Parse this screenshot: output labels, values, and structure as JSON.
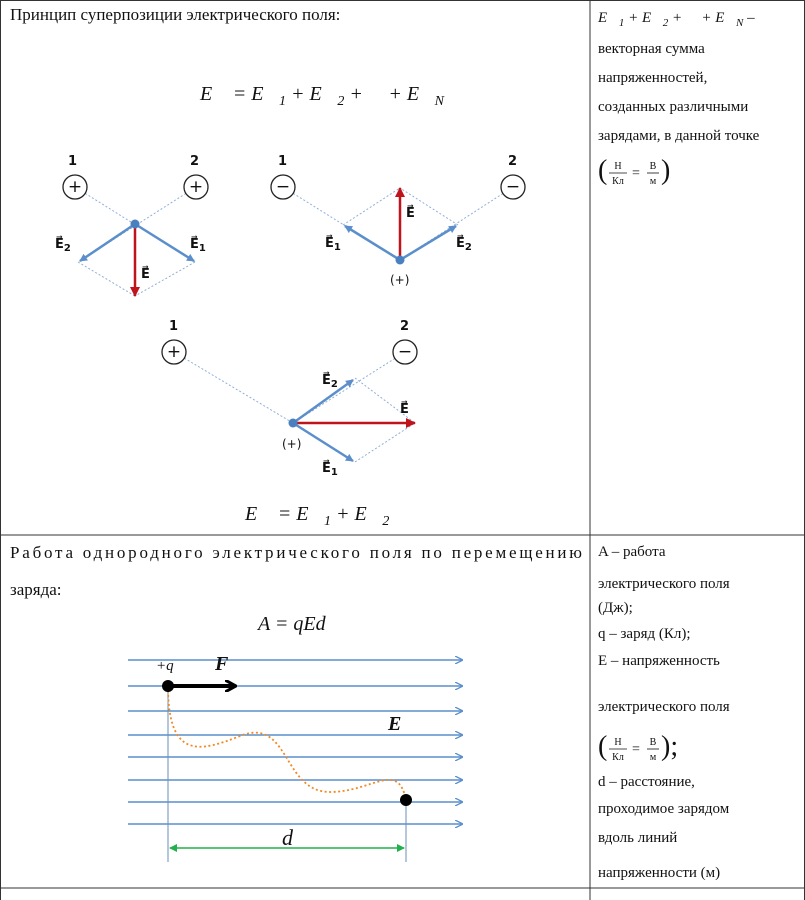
{
  "rows": [
    {
      "left": {
        "heading": "Принцип суперпозиции электрического поля:",
        "formula": [
          "E⃗ = E⃗",
          "1",
          " + E⃗",
          "2",
          " + ⋯ + E⃗",
          "N"
        ],
        "diagrams": [
          {
            "charges": [
              {
                "number": "1",
                "sign": "+"
              },
              {
                "number": "2",
                "sign": "+"
              }
            ],
            "e1": [
              "E⃗",
              "1"
            ],
            "e2": [
              "E⃗",
              "2"
            ],
            "e": "E⃗"
          },
          {
            "charges": [
              {
                "number": "1",
                "sign": "−"
              },
              {
                "number": "2",
                "sign": "−"
              }
            ],
            "e1": [
              "E⃗",
              "1"
            ],
            "e2": [
              "E⃗",
              "2"
            ],
            "e": "E⃗",
            "point": "(+)"
          },
          {
            "charges": [
              {
                "number": "1",
                "sign": "+"
              },
              {
                "number": "2",
                "sign": "−"
              }
            ],
            "e1": [
              "E⃗",
              "1"
            ],
            "e2": [
              "E⃗",
              "2"
            ],
            "e": "E⃗",
            "point": "(+)"
          }
        ],
        "bottom_formula": [
          "E⃗ = E⃗",
          "1",
          " + E⃗",
          "2"
        ]
      },
      "right": {
        "sum": [
          "E⃗",
          "1",
          " + E⃗",
          "2",
          " + ⋯ + E⃗",
          "N",
          " –"
        ],
        "lines": [
          "векторная сумма",
          "напряженностей,",
          "созданных различными",
          "зарядами, в данной точке"
        ],
        "units": {
          "open": "(",
          "a": [
            "Н",
            "Кл"
          ],
          "eq": "=",
          "b": [
            "В",
            "м"
          ],
          "close": ")"
        }
      }
    },
    {
      "left": {
        "heading": [
          "Работа однородного электрического поля по перемещению",
          "заряда:"
        ],
        "formula": "A = qEd",
        "charge": "+q",
        "force": "F⃗",
        "field": "E⃗",
        "distance": "d"
      },
      "right": {
        "lines_before": [
          "A – работа",
          "электрического поля",
          "(Дж);",
          "q – заряд (Кл);",
          "E – напряженность",
          "электрического поля"
        ],
        "units": {
          "open": "(",
          "a": [
            "Н",
            "Кл"
          ],
          "eq": "=",
          "b": [
            "В",
            "м"
          ],
          "close": ");"
        },
        "lines_after": [
          "d – расстояние,",
          "проходимое зарядом",
          "вдоль линий",
          "напряженности (м)"
        ]
      }
    }
  ]
}
